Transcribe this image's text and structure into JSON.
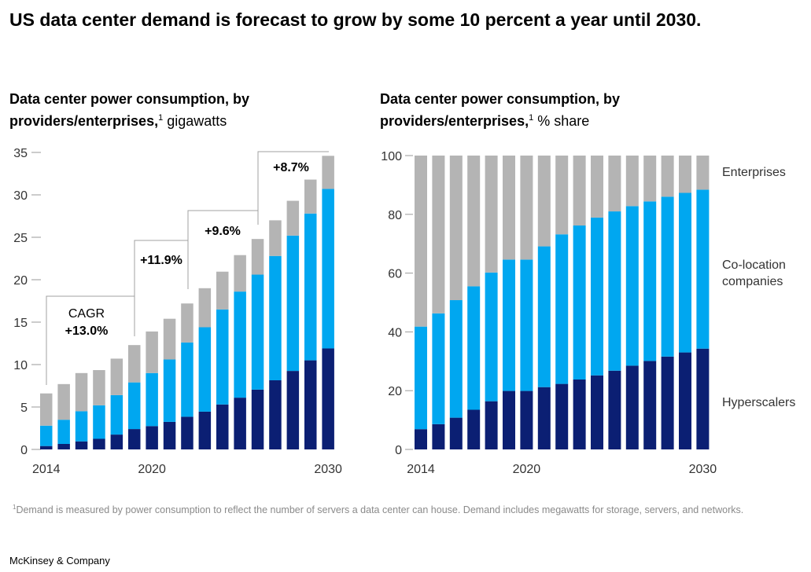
{
  "title": "US data center demand is forecast to grow by some 10 percent a year until 2030.",
  "colors": {
    "hyperscalers": "#0b1f73",
    "colocation": "#00a7f0",
    "enterprises": "#b4b4b4",
    "axis": "#9a9a9a"
  },
  "footnote": {
    "marker": "1",
    "text": "Demand is measured by power consumption to reflect the number of servers a data center can house. Demand includes megawatts for storage, servers, and networks."
  },
  "source": "McKinsey & Company",
  "chart_data": [
    {
      "type": "stacked-bar",
      "title_bold": "Data center power consumption, by providers/enterprises,",
      "title_sup": "1",
      "title_unit": "gigawatts",
      "x": [
        2014,
        2015,
        2016,
        2017,
        2018,
        2019,
        2020,
        2021,
        2022,
        2023,
        2024,
        2025,
        2026,
        2027,
        2028,
        2029,
        2030
      ],
      "xtick_labels": [
        "2014",
        "2020",
        "2030"
      ],
      "ylim": [
        0,
        35
      ],
      "yticks": [
        "0",
        "5",
        "10",
        "15",
        "20",
        "25",
        "30",
        "35"
      ],
      "series": [
        {
          "key": "hyperscalers",
          "values": [
            0.4,
            0.65,
            0.95,
            1.25,
            1.75,
            2.4,
            2.75,
            3.25,
            3.85,
            4.45,
            5.3,
            6.1,
            7.05,
            8.15,
            9.25,
            10.5,
            11.9
          ]
        },
        {
          "key": "colocation",
          "values": [
            2.4,
            2.85,
            3.55,
            3.95,
            4.65,
            5.5,
            6.25,
            7.35,
            8.75,
            9.95,
            11.2,
            12.5,
            13.55,
            14.65,
            15.95,
            17.3,
            18.8
          ]
        },
        {
          "key": "enterprises",
          "values": [
            3.8,
            4.2,
            4.5,
            4.15,
            4.3,
            4.4,
            4.9,
            4.8,
            4.6,
            4.6,
            4.45,
            4.3,
            4.2,
            4.2,
            4.1,
            4.0,
            3.9
          ]
        }
      ],
      "annotations": {
        "cagr_label": "CAGR",
        "periods": [
          "+13.0%",
          "+11.9%",
          "+9.6%",
          "+8.7%"
        ]
      }
    },
    {
      "type": "stacked-bar-100",
      "title_bold": "Data center power consumption, by providers/enterprises,",
      "title_sup": "1",
      "title_unit": "% share",
      "x": [
        2014,
        2015,
        2016,
        2017,
        2018,
        2019,
        2020,
        2021,
        2022,
        2023,
        2024,
        2025,
        2026,
        2027,
        2028,
        2029,
        2030
      ],
      "xtick_labels": [
        "2014",
        "2020",
        "2030"
      ],
      "ylim": [
        0,
        100
      ],
      "yticks": [
        "0",
        "20",
        "40",
        "60",
        "80",
        "100"
      ],
      "series": [
        {
          "key": "hyperscalers",
          "name": "Hyperscalers",
          "values": [
            6.9,
            8.6,
            10.8,
            13.5,
            16.4,
            19.9,
            19.9,
            21.2,
            22.3,
            23.8,
            25.2,
            26.8,
            28.5,
            30.1,
            31.6,
            33.0,
            34.3
          ]
        },
        {
          "key": "colocation",
          "name": "Co-location companies",
          "name_lines": [
            "Co-location",
            "companies"
          ],
          "values": [
            34.9,
            37.7,
            40.0,
            42.0,
            43.8,
            44.7,
            44.7,
            47.9,
            50.9,
            52.4,
            53.7,
            54.2,
            54.3,
            54.3,
            54.4,
            54.3,
            54.1
          ]
        },
        {
          "key": "enterprises",
          "name": "Enterprises",
          "values": [
            58.2,
            53.7,
            49.2,
            44.5,
            39.8,
            35.4,
            35.4,
            30.9,
            26.8,
            23.8,
            21.1,
            19.0,
            17.2,
            15.6,
            14.0,
            12.7,
            11.6
          ]
        }
      ]
    }
  ]
}
